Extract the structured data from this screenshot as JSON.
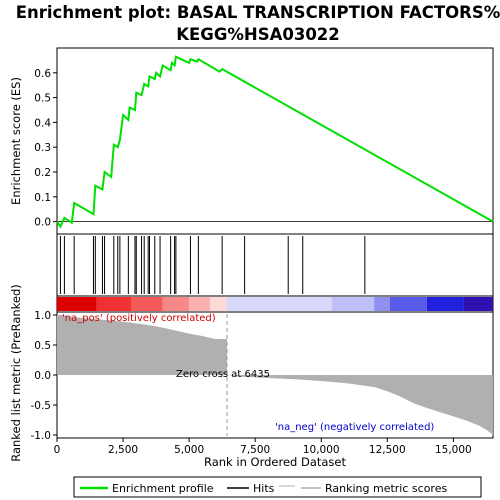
{
  "chart_data": {
    "type": "line",
    "title": "Enrichment plot: BASAL TRANSCRIPTION FACTORS%\nKEGG%HSA03022",
    "title_lines": [
      "Enrichment plot: BASAL TRANSCRIPTION FACTORS%",
      "KEGG%HSA03022"
    ],
    "xlabel": "Rank in Ordered Dataset",
    "xlim": [
      0,
      16500
    ],
    "x_ticks": [
      0,
      2500,
      5000,
      7500,
      10000,
      12500,
      15000
    ],
    "x_tick_labels": [
      "0",
      "2,500",
      "5,000",
      "7,500",
      "10,000",
      "12,500",
      "15,000"
    ],
    "es_panel": {
      "ylabel": "Enrichment score (ES)",
      "ylim": [
        -0.05,
        0.7
      ],
      "y_ticks": [
        0.0,
        0.1,
        0.2,
        0.3,
        0.4,
        0.5,
        0.6
      ],
      "y_tick_labels": [
        "0.0",
        "0.1",
        "0.2",
        "0.3",
        "0.4",
        "0.5",
        "0.6"
      ],
      "series": [
        {
          "name": "Enrichment profile",
          "color": "#00e000",
          "x": [
            0,
            130,
            280,
            560,
            650,
            1380,
            1450,
            1720,
            1800,
            2050,
            2150,
            2300,
            2380,
            2500,
            2700,
            2750,
            2950,
            3000,
            3200,
            3300,
            3450,
            3500,
            3700,
            3750,
            3900,
            4000,
            4300,
            4350,
            4450,
            4500,
            5000,
            5050,
            5300,
            5350,
            6150,
            6250,
            16500
          ],
          "y": [
            0.0,
            -0.02,
            0.015,
            -0.005,
            0.075,
            0.03,
            0.145,
            0.13,
            0.2,
            0.18,
            0.31,
            0.3,
            0.33,
            0.43,
            0.41,
            0.46,
            0.45,
            0.52,
            0.51,
            0.555,
            0.545,
            0.585,
            0.575,
            0.6,
            0.585,
            0.63,
            0.61,
            0.64,
            0.63,
            0.665,
            0.64,
            0.655,
            0.645,
            0.655,
            0.605,
            0.615,
            0.0
          ]
        }
      ]
    },
    "hits": {
      "name": "Hits",
      "positions": [
        130,
        280,
        650,
        1380,
        1450,
        1720,
        1800,
        2150,
        2300,
        2380,
        2700,
        2950,
        3000,
        3200,
        3300,
        3450,
        3500,
        3700,
        3900,
        4300,
        4450,
        4500,
        5050,
        5350,
        6250,
        7100,
        8750,
        9300,
        11650
      ]
    },
    "ranking_panel": {
      "ylabel": "Ranked list metric (PreRanked)",
      "ylim": [
        -1.05,
        1.05
      ],
      "y_ticks": [
        1.0,
        0.5,
        0.0,
        -0.5,
        -1.0
      ],
      "y_tick_labels": [
        "1.0",
        "0.5",
        "0.0",
        "-0.5",
        "-1.0"
      ],
      "series_name": "Ranking metric scores",
      "color": "#b0b0b0",
      "x": [
        0,
        200,
        400,
        700,
        1000,
        1500,
        2000,
        2500,
        3000,
        3500,
        4000,
        4500,
        5000,
        5500,
        6000,
        6435,
        7000,
        8000,
        9000,
        10000,
        11000,
        12000,
        12500,
        13000,
        13500,
        14000,
        14500,
        15000,
        15500,
        16000,
        16300,
        16500
      ],
      "values": [
        1.0,
        1.0,
        0.98,
        0.96,
        0.95,
        0.93,
        0.91,
        0.89,
        0.86,
        0.83,
        0.79,
        0.74,
        0.69,
        0.65,
        0.6,
        0.0,
        -0.03,
        -0.05,
        -0.07,
        -0.1,
        -0.14,
        -0.2,
        -0.27,
        -0.36,
        -0.47,
        -0.55,
        -0.62,
        -0.69,
        -0.76,
        -0.85,
        -0.93,
        -1.0
      ],
      "zero_cross_label": "Zero cross at 6435",
      "zero_cross_rank": 6435,
      "pos_label": "'na_pos' (positively correlated)",
      "neg_label": "'na_neg' (negatively correlated)",
      "pos_label_color": "#cc0000",
      "neg_label_color": "#0000cc"
    },
    "legend": {
      "placement": "bottom",
      "entries": [
        {
          "label": "Enrichment profile",
          "color": "#00e000"
        },
        {
          "label": "Hits",
          "color": "#000000"
        },
        {
          "label": "Ranking metric scores",
          "color": "#b0b0b0"
        }
      ]
    },
    "grid": false
  }
}
